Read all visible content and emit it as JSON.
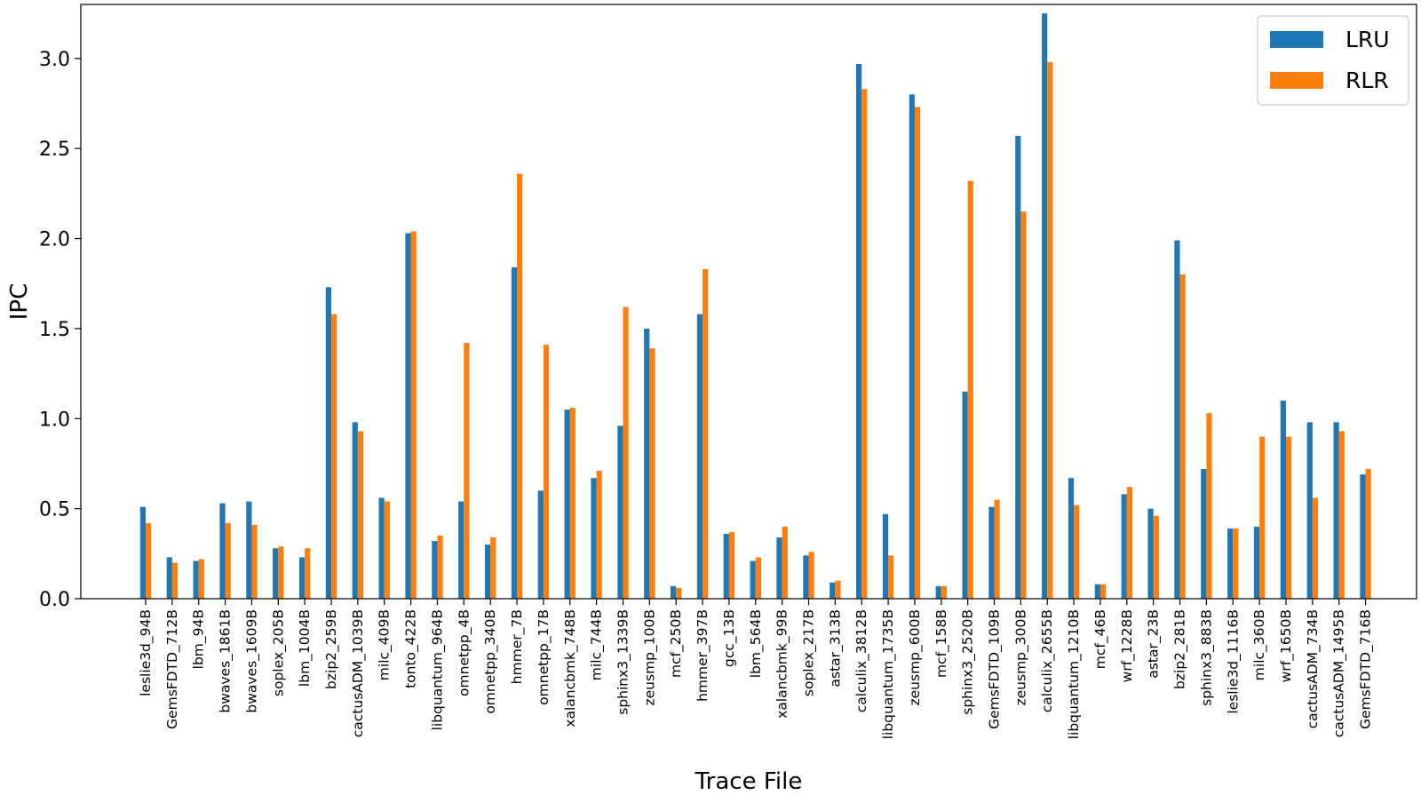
{
  "chart_data": {
    "type": "bar",
    "title": "",
    "xlabel": "Trace File",
    "ylabel": "IPC",
    "ylim": [
      0,
      3.3
    ],
    "yticks": [
      0.0,
      0.5,
      1.0,
      1.5,
      2.0,
      2.5,
      3.0
    ],
    "ytick_labels": [
      "0.0",
      "0.5",
      "1.0",
      "1.5",
      "2.0",
      "2.5",
      "3.0"
    ],
    "grid": false,
    "legend_position": "top-right",
    "categories": [
      "leslie3d_94B",
      "GemsFDTD_712B",
      "lbm_94B",
      "bwaves_1861B",
      "bwaves_1609B",
      "soplex_205B",
      "lbm_1004B",
      "bzip2_259B",
      "cactusADM_1039B",
      "milc_409B",
      "tonto_422B",
      "libquantum_964B",
      "omnetpp_4B",
      "omnetpp_340B",
      "hmmer_7B",
      "omnetpp_17B",
      "xalancbmk_748B",
      "milc_744B",
      "sphinx3_1339B",
      "zeusmp_100B",
      "mcf_250B",
      "hmmer_397B",
      "gcc_13B",
      "lbm_564B",
      "xalancbmk_99B",
      "soplex_217B",
      "astar_313B",
      "calculix_3812B",
      "libquantum_1735B",
      "zeusmp_600B",
      "mcf_158B",
      "sphinx3_2520B",
      "GemsFDTD_109B",
      "zeusmp_300B",
      "calculix_2655B",
      "libquantum_1210B",
      "mcf_46B",
      "wrf_1228B",
      "astar_23B",
      "bzip2_281B",
      "sphinx3_883B",
      "leslie3d_1116B",
      "milc_360B",
      "wrf_1650B",
      "cactusADM_734B",
      "cactusADM_1495B",
      "GemsFDTD_716B"
    ],
    "series": [
      {
        "name": "LRU",
        "color": "#1f77b4",
        "values": [
          0.51,
          0.23,
          0.21,
          0.53,
          0.54,
          0.28,
          0.23,
          1.73,
          0.98,
          0.56,
          2.03,
          0.32,
          0.54,
          0.3,
          1.84,
          0.6,
          1.05,
          0.67,
          0.96,
          1.5,
          0.07,
          1.58,
          0.36,
          0.21,
          0.34,
          0.24,
          0.09,
          2.97,
          0.47,
          2.8,
          0.07,
          1.15,
          0.51,
          2.57,
          3.25,
          0.67,
          0.08,
          0.58,
          0.5,
          1.99,
          0.72,
          0.39,
          0.4,
          1.1,
          0.98,
          0.98,
          0.69
        ]
      },
      {
        "name": "RLR",
        "color": "#ff7f0e",
        "values": [
          0.42,
          0.2,
          0.22,
          0.42,
          0.41,
          0.29,
          0.28,
          1.58,
          0.93,
          0.54,
          2.04,
          0.35,
          1.42,
          0.34,
          2.36,
          1.41,
          1.06,
          0.71,
          1.62,
          1.39,
          0.06,
          1.83,
          0.37,
          0.23,
          0.4,
          0.26,
          0.1,
          2.83,
          0.24,
          2.73,
          0.07,
          2.32,
          0.55,
          2.15,
          2.98,
          0.52,
          0.08,
          0.62,
          0.46,
          1.8,
          1.03,
          0.39,
          0.9,
          0.9,
          0.56,
          0.93,
          0.72
        ]
      }
    ]
  }
}
